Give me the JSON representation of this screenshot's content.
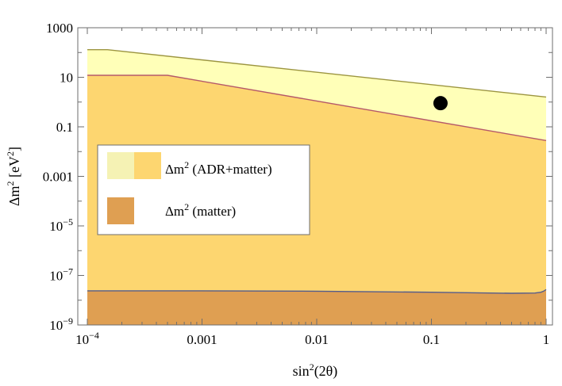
{
  "chart_data": {
    "type": "area",
    "xlabel": "sin²(2θ)",
    "ylabel": "Δm² [eV²]",
    "x_scale": "log",
    "y_scale": "log",
    "xlim": [
      0.0001,
      1
    ],
    "ylim": [
      1e-09,
      1000
    ],
    "x_ticks": [
      {
        "value": 0.0001,
        "label": "10",
        "sup": "−4"
      },
      {
        "value": 0.001,
        "label": "0.001",
        "sup": ""
      },
      {
        "value": 0.01,
        "label": "0.01",
        "sup": ""
      },
      {
        "value": 0.1,
        "label": "0.1",
        "sup": ""
      },
      {
        "value": 1,
        "label": "1",
        "sup": ""
      }
    ],
    "y_ticks": [
      {
        "value": 1e-09,
        "label": "10",
        "sup": "−9"
      },
      {
        "value": 1e-07,
        "label": "10",
        "sup": "−7"
      },
      {
        "value": 1e-05,
        "label": "10",
        "sup": "−5"
      },
      {
        "value": 0.001,
        "label": "0.001",
        "sup": ""
      },
      {
        "value": 0.1,
        "label": "0.1",
        "sup": ""
      },
      {
        "value": 10,
        "label": "10",
        "sup": ""
      },
      {
        "value": 1000,
        "label": "1000",
        "sup": ""
      }
    ],
    "grid": false,
    "legend_position": "left-middle",
    "legend": [
      {
        "label": "Δm² (ADR+matter)",
        "colors": [
          "#f5f2b4",
          "#fdd670"
        ]
      },
      {
        "label": "Δm² (matter)",
        "colors": [
          "#df9f52"
        ]
      }
    ],
    "series": [
      {
        "label": "Δm² (ADR+matter)",
        "role": "outer-band",
        "fill": "#ffffb8",
        "stroke": "#9c9540",
        "x": [
          0.0001,
          0.00015,
          1
        ],
        "y": [
          130,
          130,
          1.6
        ]
      },
      {
        "label": "Δm² (ADR+matter)",
        "role": "inner-band",
        "fill": "#fdd670",
        "stroke": "#b5586a",
        "x": [
          0.0001,
          0.0005,
          1
        ],
        "y": [
          12,
          12,
          0.028
        ]
      },
      {
        "label": "Δm² (matter)",
        "role": "matter-band",
        "fill": "#df9f52",
        "stroke": "#545c8c",
        "x": [
          0.0001,
          0.001,
          0.01,
          0.1,
          0.5,
          0.8,
          0.9,
          0.95,
          1
        ],
        "y": [
          2.4e-08,
          2.4e-08,
          2.3e-08,
          2.1e-08,
          1.9e-08,
          1.95e-08,
          2.1e-08,
          2.3e-08,
          2.7e-08
        ]
      }
    ],
    "points": [
      {
        "x": 0.12,
        "y": 0.9,
        "color": "#000000"
      }
    ]
  }
}
